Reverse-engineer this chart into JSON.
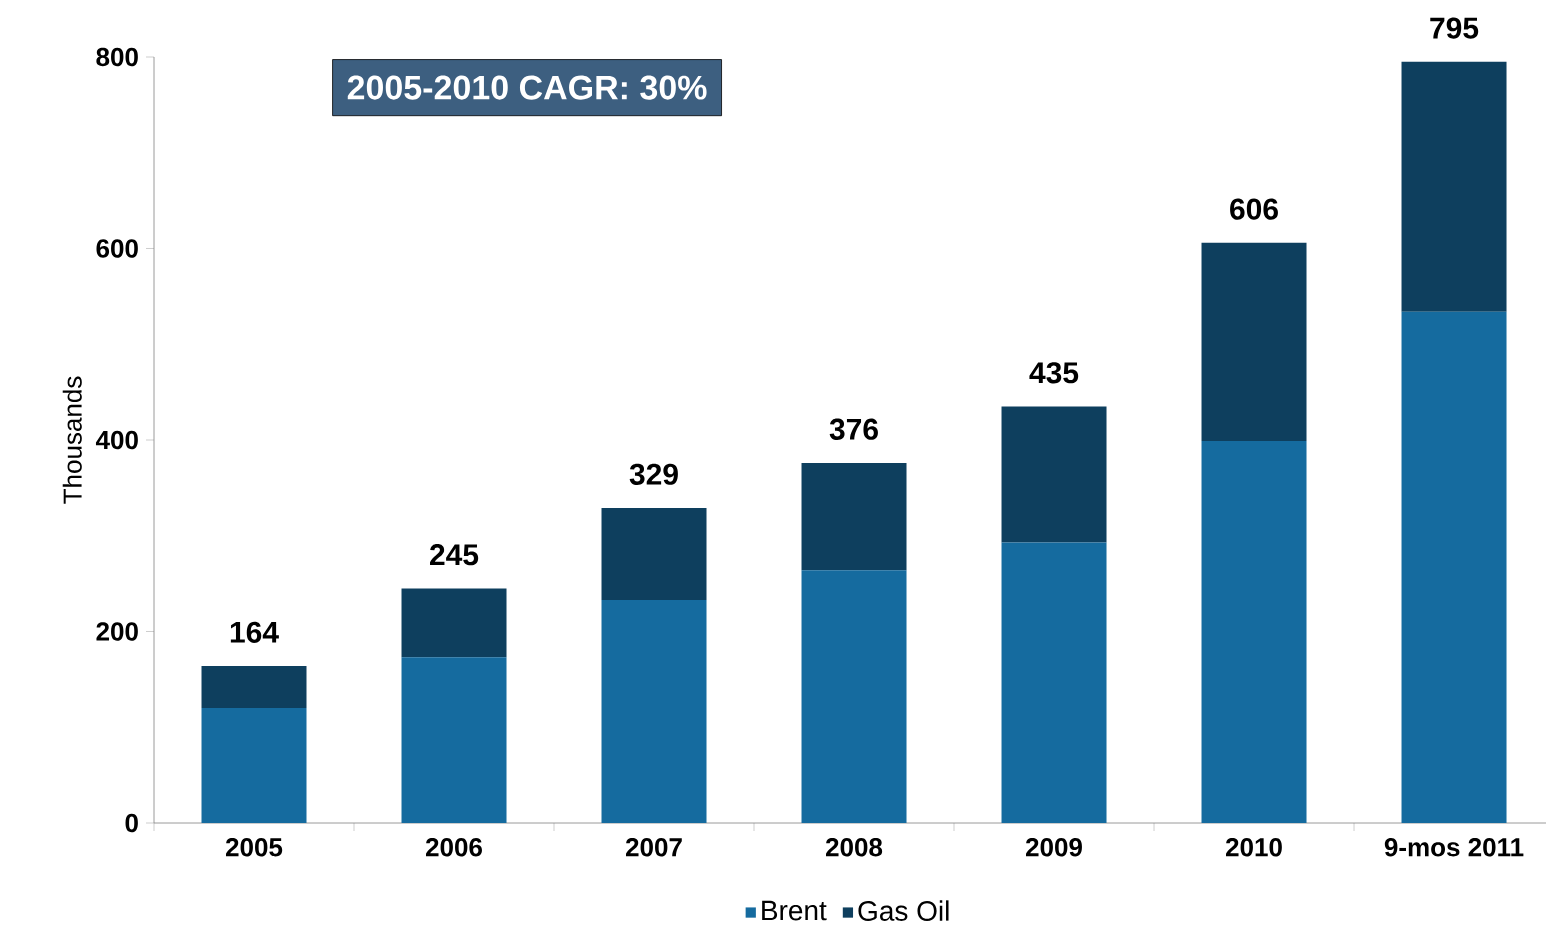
{
  "chart_data": {
    "type": "bar",
    "stacked": true,
    "ylabel": "Thousands",
    "categories": [
      "2005",
      "2006",
      "2007",
      "2008",
      "2009",
      "2010",
      "9-mos 2011"
    ],
    "series": [
      {
        "name": "Brent",
        "color": "#156b9f",
        "values": [
          120,
          173,
          233,
          264,
          293,
          399,
          534
        ]
      },
      {
        "name": "Gas Oil",
        "color": "#0e3f5e",
        "values": [
          44,
          72,
          96,
          112,
          142,
          207,
          261
        ]
      }
    ],
    "totals": [
      "164",
      "245",
      "329",
      "376",
      "435",
      "606",
      "795"
    ],
    "annotations": [
      "2005-2010 CAGR: 30%"
    ],
    "ylim": [
      0,
      800
    ],
    "yticks": [
      0,
      200,
      400,
      600,
      800
    ],
    "grid": false,
    "legend": "bottom"
  }
}
